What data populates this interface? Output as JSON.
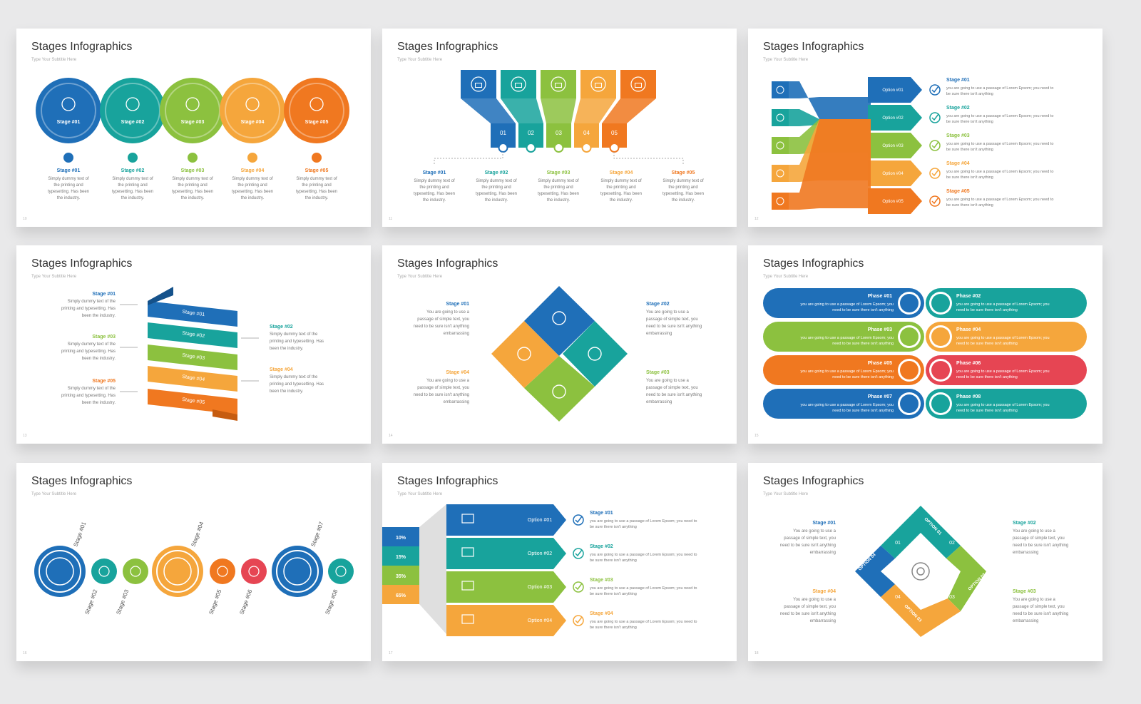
{
  "colors": {
    "blue": "#1f6fb8",
    "teal": "#18a39c",
    "green": "#8cc13f",
    "orange": "#f5a63c",
    "dorange": "#f07820",
    "red": "#e64553"
  },
  "slides": [
    {
      "title": "Stages Infographics",
      "subtitle": "Type Your Subtitle Here",
      "page": "10",
      "circles": [
        "Stage #01",
        "Stage #02",
        "Stage #03",
        "Stage #04",
        "Stage #05"
      ],
      "items": [
        {
          "label": "Stage #01",
          "text": [
            "Simply dummy text of",
            "the printing and",
            "typesetting. Has been",
            "the industry."
          ]
        },
        {
          "label": "Stage #02",
          "text": [
            "Simply dummy text of",
            "the printing and",
            "typesetting. Has been",
            "the industry."
          ]
        },
        {
          "label": "Stage #03",
          "text": [
            "Simply dummy text of",
            "the printing and",
            "typesetting. Has been",
            "the industry."
          ]
        },
        {
          "label": "Stage #04",
          "text": [
            "Simply dummy text of",
            "the printing and",
            "typesetting. Has been",
            "the industry."
          ]
        },
        {
          "label": "Stage #05",
          "text": [
            "Simply dummy text of",
            "the printing and",
            "typesetting. Has been",
            "the industry."
          ]
        }
      ],
      "icons": [
        "user-icon",
        "document-icon",
        "gears-icon",
        "settings-icon",
        "thumbs-up-icon"
      ]
    },
    {
      "title": "Stages Infographics",
      "subtitle": "Type Your Subtitle Here",
      "page": "11",
      "numbers": [
        "01",
        "02",
        "03",
        "04",
        "05"
      ],
      "items": [
        {
          "label": "Stage #01",
          "text": [
            "Simply dummy text of",
            "the printing and",
            "typesetting. Has been",
            "the industry."
          ]
        },
        {
          "label": "Stage #02",
          "text": [
            "Simply dummy text of",
            "the printing and",
            "typesetting. Has been",
            "the industry."
          ]
        },
        {
          "label": "Stage #03",
          "text": [
            "Simply dummy text of",
            "the printing and",
            "typesetting. Has been",
            "the industry."
          ]
        },
        {
          "label": "Stage #04",
          "text": [
            "Simply dummy text of",
            "the printing and",
            "typesetting. Has been",
            "the industry."
          ]
        },
        {
          "label": "Stage #05",
          "text": [
            "Simply dummy text of",
            "the printing and",
            "typesetting. Has been",
            "the industry."
          ]
        }
      ]
    },
    {
      "title": "Stages Infographics",
      "subtitle": "Type Your Subtitle Here",
      "page": "12",
      "options": [
        "Option #01",
        "Option #02",
        "Option #03",
        "Option #04",
        "Option #05"
      ],
      "items": [
        {
          "label": "Stage #01",
          "text": [
            "you are going to use a passage of Lorem Epsom; you need to",
            "be sure there isn't anything"
          ]
        },
        {
          "label": "Stage #02",
          "text": [
            "you are going to use a passage of Lorem Epsom; you need to",
            "be sure there isn't anything"
          ]
        },
        {
          "label": "Stage #03",
          "text": [
            "you are going to use a passage of Lorem Epsom; you need to",
            "be sure there isn't anything"
          ]
        },
        {
          "label": "Stage #04",
          "text": [
            "you are going to use a passage of Lorem Epsom; you need to",
            "be sure there isn't anything"
          ]
        },
        {
          "label": "Stage #05",
          "text": [
            "you are going to use a passage of Lorem Epsom; you need to",
            "be sure there isn't anything"
          ]
        }
      ]
    },
    {
      "title": "Stages Infographics",
      "subtitle": "Type Your Subtitle Here",
      "page": "13",
      "ribbons": [
        "Stage #01",
        "Stage #02",
        "Stage #03",
        "Stage #04",
        "Stage #05"
      ],
      "items": [
        {
          "label": "Stage #01",
          "text": [
            "Simply dummy text of the",
            "printing and typesetting. Has",
            "been the industry."
          ]
        },
        {
          "label": "Stage #02",
          "text": [
            "Simply dummy text of the",
            "printing and typesetting. Has",
            "been the industry."
          ]
        },
        {
          "label": "Stage #03",
          "text": [
            "Simply dummy text of the",
            "printing and typesetting. Has",
            "been the industry."
          ]
        },
        {
          "label": "Stage #04",
          "text": [
            "Simply dummy text of the",
            "printing and typesetting. Has",
            "been the industry."
          ]
        },
        {
          "label": "Stage #05",
          "text": [
            "Simply dummy text of the",
            "printing and typesetting. Has",
            "been the industry."
          ]
        }
      ]
    },
    {
      "title": "Stages Infographics",
      "subtitle": "Type Your Subtitle Here",
      "page": "14",
      "items": [
        {
          "label": "Stage #01",
          "text": [
            "You are going to use a",
            "passage of simple text, you",
            "need to be sure isn't anything",
            "embarrassing"
          ]
        },
        {
          "label": "Stage #02",
          "text": [
            "You are going to use a",
            "passage of simple text, you",
            "need to be sure isn't anything",
            "embarrassing"
          ]
        },
        {
          "label": "Stage #03",
          "text": [
            "You are going to use a",
            "passage of simple text, you",
            "need to be sure isn't anything",
            "embarrassing"
          ]
        },
        {
          "label": "Stage #04",
          "text": [
            "You are going to use a",
            "passage of simple text, you",
            "need to be sure isn't anything",
            "embarrassing"
          ]
        }
      ]
    },
    {
      "title": "Stages Infographics",
      "subtitle": "Type Your Subtitle Here",
      "page": "15",
      "phases": [
        {
          "label": "Phase #01",
          "text": [
            "you are going to use a passage of Lorem Epsom; you",
            "need to be sure there isn't anything"
          ]
        },
        {
          "label": "Phase #02",
          "text": [
            "you are going to use a passage of Lorem Epsom; you",
            "need to be sure there isn't anything"
          ]
        },
        {
          "label": "Phase #03",
          "text": [
            "you are going to use a passage of Lorem Epsom; you",
            "need to be sure there isn't anything"
          ]
        },
        {
          "label": "Phase #04",
          "text": [
            "you are going to use a passage of Lorem Epsom; you",
            "need to be sure there isn't anything"
          ]
        },
        {
          "label": "Phase #05",
          "text": [
            "you are going to use a passage of Lorem Epsom; you",
            "need to be sure there isn't anything"
          ]
        },
        {
          "label": "Phase #06",
          "text": [
            "you are going to use a passage of Lorem Epsom; you",
            "need to be sure there isn't anything"
          ]
        },
        {
          "label": "Phase #07",
          "text": [
            "you are going to use a passage of Lorem Epsom; you",
            "need to be sure there isn't anything"
          ]
        },
        {
          "label": "Phase #08",
          "text": [
            "you are going to use a passage of Lorem Epsom; you",
            "need to be sure there isn't anything"
          ]
        }
      ]
    },
    {
      "title": "Stages Infographics",
      "subtitle": "Type Your Subtitle Here",
      "page": "16",
      "stages": [
        "Stage #01",
        "Stage #02",
        "Stage #03",
        "Stage #04",
        "Stage #05",
        "Stage #06",
        "Stage #07",
        "Stage #08"
      ]
    },
    {
      "title": "Stages Infographics",
      "subtitle": "Type Your Subtitle Here",
      "page": "17",
      "percents": [
        "10%",
        "15%",
        "35%",
        "65%"
      ],
      "options": [
        "Option #01",
        "Option #02",
        "Option #03",
        "Option #04"
      ],
      "items": [
        {
          "label": "Stage #01",
          "text": [
            "you are going to use a passage of Lorem Epsom; you need to",
            "be sure there isn't anything"
          ]
        },
        {
          "label": "Stage #02",
          "text": [
            "you are going to use a passage of Lorem Epsom; you need to",
            "be sure there isn't anything"
          ]
        },
        {
          "label": "Stage #03",
          "text": [
            "you are going to use a passage of Lorem Epsom; you need to",
            "be sure there isn't anything"
          ]
        },
        {
          "label": "Stage #04",
          "text": [
            "you are going to use a passage of Lorem Epsom; you need to",
            "be sure there isn't anything"
          ]
        }
      ]
    },
    {
      "title": "Stages Infographics",
      "subtitle": "Type Your Subtitle Here",
      "page": "18",
      "cycle": [
        "OPTION 01",
        "OPTION 02",
        "OPTION 03",
        "OPTION 04"
      ],
      "numbers": [
        "01",
        "02",
        "03",
        "04"
      ],
      "items": [
        {
          "label": "Stage #01",
          "text": [
            "You are going to use a",
            "passage of simple text, you",
            "need to be sure isn't anything",
            "embarrassing"
          ]
        },
        {
          "label": "Stage #02",
          "text": [
            "You are going to use a",
            "passage of simple text, you",
            "need to be sure isn't anything",
            "embarrassing"
          ]
        },
        {
          "label": "Stage #03",
          "text": [
            "You are going to use a",
            "passage of simple text, you",
            "need to be sure isn't anything",
            "embarrassing"
          ]
        },
        {
          "label": "Stage #04",
          "text": [
            "You are going to use a",
            "passage of simple text, you",
            "need to be sure isn't anything",
            "embarrassing"
          ]
        }
      ]
    }
  ]
}
